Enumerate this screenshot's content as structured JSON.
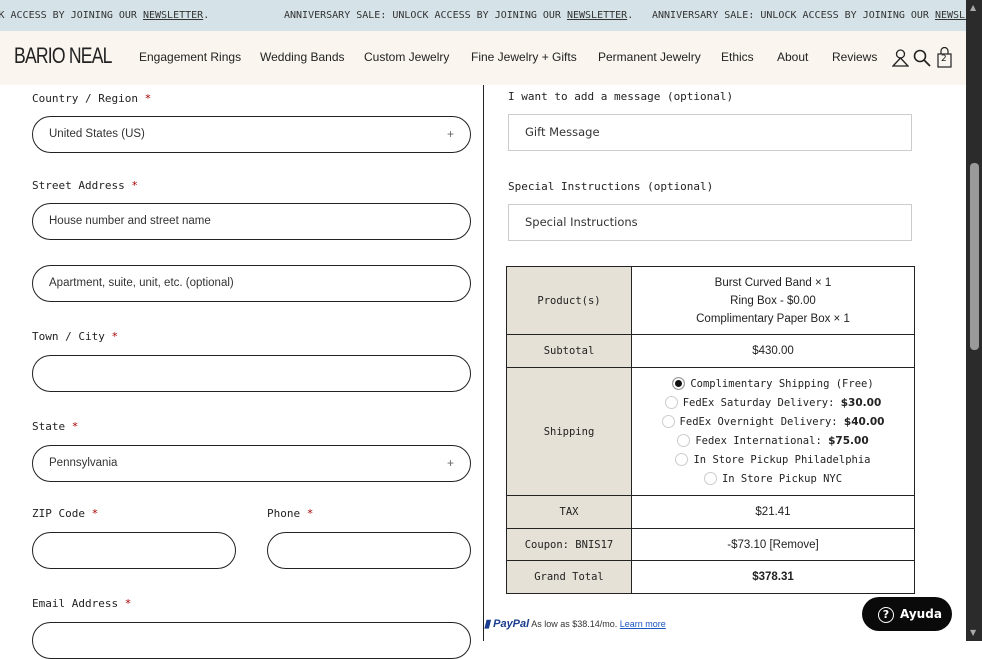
{
  "banner": {
    "prefix": "ANNIVERSARY SALE: UNLOCK ACCESS BY JOINING OUR ",
    "link": "NEWSLETTER",
    "suffix": "."
  },
  "nav": {
    "logo": "BARIO NEAL",
    "items": [
      "Engagement Rings",
      "Wedding Bands",
      "Custom Jewelry",
      "Fine Jewelry + Gifts",
      "Permanent Jewelry",
      "Ethics",
      "About",
      "Reviews"
    ],
    "cart_count": "2"
  },
  "form": {
    "country_label": "Country / Region",
    "country_value": "United States (US)",
    "street_label": "Street Address",
    "street_placeholder": "House number and street name",
    "apt_placeholder": "Apartment, suite, unit, etc. (optional)",
    "city_label": "Town / City",
    "state_label": "State",
    "state_value": "Pennsylvania",
    "zip_label": "ZIP Code",
    "phone_label": "Phone",
    "email_label": "Email Address",
    "required": "*",
    "select_icon": "+"
  },
  "right": {
    "message_label": "I want to add a message (optional)",
    "message_placeholder": "Gift Message",
    "instructions_label": "Special Instructions (optional)",
    "instructions_placeholder": "Special Instructions"
  },
  "summary": {
    "products_label": "Product(s)",
    "products": [
      "Burst Curved Band × 1",
      "Ring Box - $0.00",
      "Complimentary Paper Box × 1"
    ],
    "subtotal_label": "Subtotal",
    "subtotal": "$430.00",
    "shipping_label": "Shipping",
    "shipping_options": [
      {
        "label": "Complimentary Shipping (Free)",
        "price": "",
        "selected": true
      },
      {
        "label": "FedEx Saturday Delivery: ",
        "price": "$30.00",
        "selected": false
      },
      {
        "label": "FedEx Overnight Delivery: ",
        "price": "$40.00",
        "selected": false
      },
      {
        "label": "Fedex International: ",
        "price": "$75.00",
        "selected": false
      },
      {
        "label": "In Store Pickup Philadelphia",
        "price": "",
        "selected": false
      },
      {
        "label": "In Store Pickup NYC",
        "price": "",
        "selected": false
      }
    ],
    "tax_label": "TAX",
    "tax": "$21.41",
    "coupon_label": "Coupon: BNIS17",
    "coupon": "-$73.10 [Remove]",
    "total_label": "Grand Total",
    "total": "$378.31"
  },
  "paypal": {
    "brand": "PayPal",
    "text": "As low as $38.14/mo.",
    "link": "Learn more"
  },
  "help": {
    "label": "Ayuda"
  }
}
